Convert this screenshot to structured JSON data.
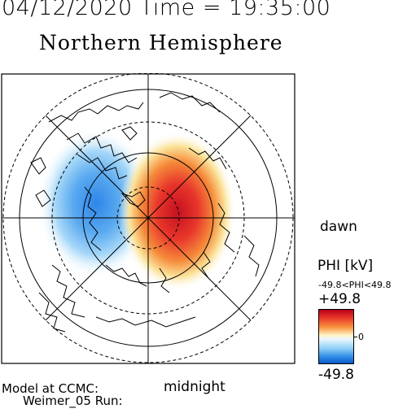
{
  "header": {
    "datetime": "04/12/2020 Time = 19:35:00",
    "title": "Northern Hemisphere"
  },
  "map": {
    "dawn_label": "dawn",
    "midnight_label": "midnight",
    "field_label": "PHI [kV]",
    "range_label": "-49.8<PHI<49.8",
    "max_label": "+49.8",
    "min_label": "-49.8",
    "zero_label": "0",
    "colors": {
      "positive": "#e8362b",
      "negative": "#2f8be6",
      "neutral": "#ffffff"
    }
  },
  "footer": {
    "model_line": "Model at CCMC:",
    "run_line": "Weimer_05 Run:"
  }
}
